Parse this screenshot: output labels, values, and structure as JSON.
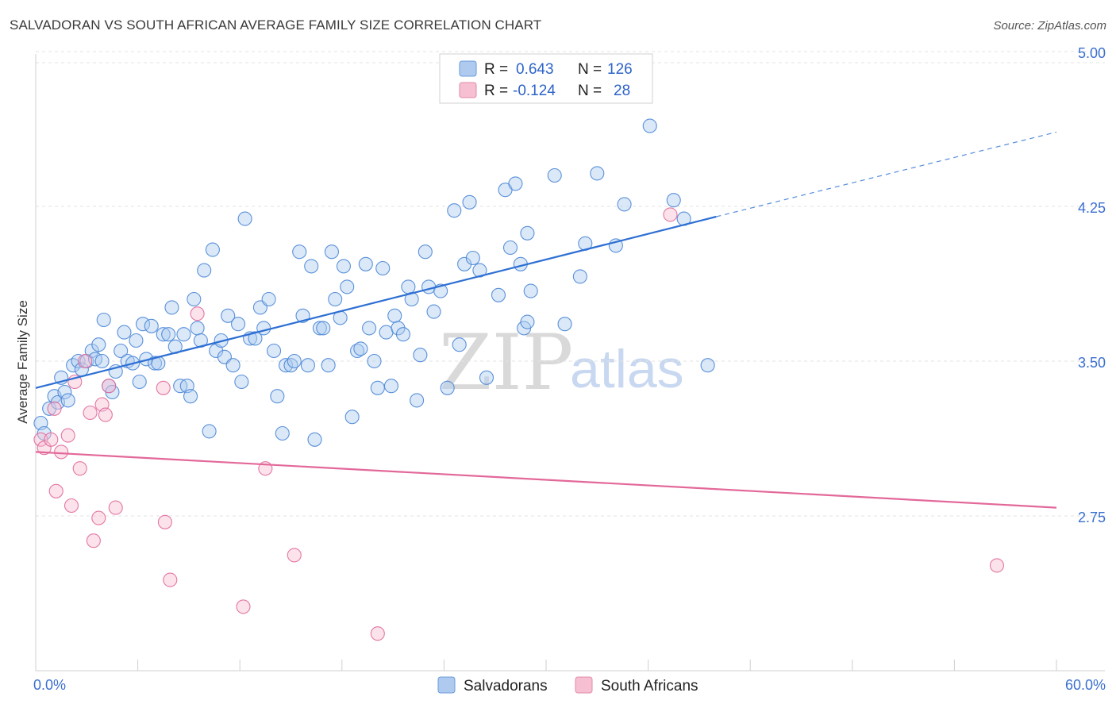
{
  "title": "SALVADORAN VS SOUTH AFRICAN AVERAGE FAMILY SIZE CORRELATION CHART",
  "source": "Source: ZipAtlas.com",
  "watermark": {
    "zip": "ZIP",
    "atlas": "atlas"
  },
  "legend_top": {
    "rows": [
      {
        "r_label": "R =",
        "r_value": "0.643",
        "n_label": "N =",
        "n_value": "126",
        "color": "#aecbef"
      },
      {
        "r_label": "R =",
        "r_value": "-0.124",
        "n_label": "N =",
        "n_value": "28",
        "color": "#f7bfd2"
      }
    ]
  },
  "legend_bottom": {
    "items": [
      {
        "label": "Salvadorans",
        "color": "#aecbef"
      },
      {
        "label": "South Africans",
        "color": "#f7bfd2"
      }
    ]
  },
  "chart_data": {
    "type": "scatter",
    "ylabel": "Average Family Size",
    "xlim": [
      0,
      60
    ],
    "ylim": [
      2.0,
      5.05
    ],
    "x_tick_labels": [
      "0.0%",
      "60.0%"
    ],
    "y_ticks": [
      2.75,
      3.5,
      4.25,
      5.0
    ],
    "y_tick_labels": [
      "2.75",
      "3.50",
      "4.25",
      "5.00"
    ],
    "grid": true,
    "colors": {
      "blue": "#4a86d6",
      "blue_fill": "#aecbef",
      "pink": "#e0699a",
      "pink_fill": "#f7bfd2",
      "trend_blue": "#2d6fd3",
      "trend_pink": "#e3689a"
    },
    "series": [
      {
        "name": "Salvadorans",
        "trend": {
          "x0": 0,
          "y0": 3.37,
          "x1": 40,
          "y1": 4.2,
          "x_dash_end": 60,
          "y_dash_end": 4.61
        },
        "points": [
          [
            0.3,
            3.2
          ],
          [
            0.5,
            3.15
          ],
          [
            0.8,
            3.27
          ],
          [
            1.1,
            3.33
          ],
          [
            1.3,
            3.3
          ],
          [
            1.5,
            3.42
          ],
          [
            1.7,
            3.35
          ],
          [
            1.9,
            3.31
          ],
          [
            2.2,
            3.48
          ],
          [
            2.5,
            3.5
          ],
          [
            2.7,
            3.46
          ],
          [
            3.0,
            3.5
          ],
          [
            3.3,
            3.55
          ],
          [
            3.5,
            3.51
          ],
          [
            3.7,
            3.58
          ],
          [
            3.9,
            3.5
          ],
          [
            4.0,
            3.7
          ],
          [
            4.3,
            3.38
          ],
          [
            4.5,
            3.35
          ],
          [
            4.7,
            3.45
          ],
          [
            5.0,
            3.55
          ],
          [
            5.2,
            3.64
          ],
          [
            5.4,
            3.5
          ],
          [
            5.7,
            3.49
          ],
          [
            5.9,
            3.6
          ],
          [
            6.1,
            3.4
          ],
          [
            6.3,
            3.68
          ],
          [
            6.5,
            3.51
          ],
          [
            6.8,
            3.67
          ],
          [
            7.0,
            3.49
          ],
          [
            7.2,
            3.49
          ],
          [
            7.5,
            3.63
          ],
          [
            7.8,
            3.63
          ],
          [
            8.0,
            3.76
          ],
          [
            8.2,
            3.57
          ],
          [
            8.5,
            3.38
          ],
          [
            8.7,
            3.63
          ],
          [
            8.9,
            3.38
          ],
          [
            9.1,
            3.33
          ],
          [
            9.3,
            3.8
          ],
          [
            9.5,
            3.66
          ],
          [
            9.7,
            3.6
          ],
          [
            9.9,
            3.94
          ],
          [
            10.2,
            3.16
          ],
          [
            10.4,
            4.04
          ],
          [
            10.6,
            3.55
          ],
          [
            10.9,
            3.6
          ],
          [
            11.1,
            3.52
          ],
          [
            11.3,
            3.72
          ],
          [
            11.6,
            3.48
          ],
          [
            11.9,
            3.68
          ],
          [
            12.1,
            3.4
          ],
          [
            12.3,
            4.19
          ],
          [
            12.6,
            3.61
          ],
          [
            12.9,
            3.61
          ],
          [
            13.2,
            3.76
          ],
          [
            13.4,
            3.66
          ],
          [
            13.7,
            3.8
          ],
          [
            14.0,
            3.55
          ],
          [
            14.2,
            3.33
          ],
          [
            14.5,
            3.15
          ],
          [
            14.7,
            3.48
          ],
          [
            15.0,
            3.48
          ],
          [
            15.2,
            3.5
          ],
          [
            15.5,
            4.03
          ],
          [
            15.7,
            3.72
          ],
          [
            16.0,
            3.48
          ],
          [
            16.2,
            3.96
          ],
          [
            16.4,
            3.12
          ],
          [
            16.7,
            3.66
          ],
          [
            16.9,
            3.66
          ],
          [
            17.2,
            3.48
          ],
          [
            17.4,
            4.03
          ],
          [
            17.6,
            3.8
          ],
          [
            17.9,
            3.71
          ],
          [
            18.1,
            3.96
          ],
          [
            18.3,
            3.86
          ],
          [
            18.6,
            3.23
          ],
          [
            18.9,
            3.55
          ],
          [
            19.1,
            3.56
          ],
          [
            19.4,
            3.97
          ],
          [
            19.6,
            3.66
          ],
          [
            19.9,
            3.5
          ],
          [
            20.1,
            3.37
          ],
          [
            20.4,
            3.95
          ],
          [
            20.6,
            3.64
          ],
          [
            20.9,
            3.38
          ],
          [
            21.1,
            3.72
          ],
          [
            21.3,
            3.66
          ],
          [
            21.6,
            3.63
          ],
          [
            21.9,
            3.86
          ],
          [
            22.1,
            3.8
          ],
          [
            22.4,
            3.31
          ],
          [
            22.6,
            3.53
          ],
          [
            22.9,
            4.03
          ],
          [
            23.1,
            3.86
          ],
          [
            23.4,
            3.74
          ],
          [
            23.8,
            3.84
          ],
          [
            24.2,
            3.37
          ],
          [
            24.6,
            4.23
          ],
          [
            24.9,
            3.58
          ],
          [
            25.2,
            3.97
          ],
          [
            25.5,
            4.27
          ],
          [
            25.7,
            4.0
          ],
          [
            26.1,
            3.94
          ],
          [
            26.5,
            3.42
          ],
          [
            27.2,
            3.82
          ],
          [
            27.6,
            4.33
          ],
          [
            27.9,
            4.05
          ],
          [
            28.2,
            4.36
          ],
          [
            28.7,
            3.66
          ],
          [
            28.9,
            3.69
          ],
          [
            28.5,
            3.97
          ],
          [
            28.9,
            4.12
          ],
          [
            29.1,
            3.84
          ],
          [
            30.5,
            4.4
          ],
          [
            31.1,
            3.68
          ],
          [
            32.0,
            3.91
          ],
          [
            32.3,
            4.07
          ],
          [
            33.0,
            4.41
          ],
          [
            34.1,
            4.06
          ],
          [
            34.6,
            4.26
          ],
          [
            36.1,
            4.64
          ],
          [
            37.5,
            4.28
          ],
          [
            38.1,
            4.19
          ],
          [
            39.5,
            3.48
          ]
        ]
      },
      {
        "name": "South Africans",
        "trend": {
          "x0": 0,
          "y0": 3.06,
          "x1": 60,
          "y1": 2.79
        },
        "points": [
          [
            0.3,
            3.12
          ],
          [
            0.5,
            3.08
          ],
          [
            0.9,
            3.12
          ],
          [
            1.1,
            3.27
          ],
          [
            1.2,
            2.87
          ],
          [
            1.5,
            3.06
          ],
          [
            1.9,
            3.14
          ],
          [
            2.1,
            2.8
          ],
          [
            2.3,
            3.4
          ],
          [
            2.6,
            2.98
          ],
          [
            2.9,
            3.5
          ],
          [
            3.2,
            3.25
          ],
          [
            3.4,
            2.63
          ],
          [
            3.7,
            2.74
          ],
          [
            3.9,
            3.29
          ],
          [
            4.1,
            3.24
          ],
          [
            4.3,
            3.38
          ],
          [
            4.7,
            2.79
          ],
          [
            7.5,
            3.37
          ],
          [
            7.6,
            2.72
          ],
          [
            7.9,
            2.44
          ],
          [
            9.5,
            3.73
          ],
          [
            12.2,
            2.31
          ],
          [
            13.5,
            2.98
          ],
          [
            15.2,
            2.56
          ],
          [
            20.1,
            2.18
          ],
          [
            37.3,
            4.21
          ],
          [
            56.5,
            2.51
          ]
        ]
      }
    ]
  }
}
